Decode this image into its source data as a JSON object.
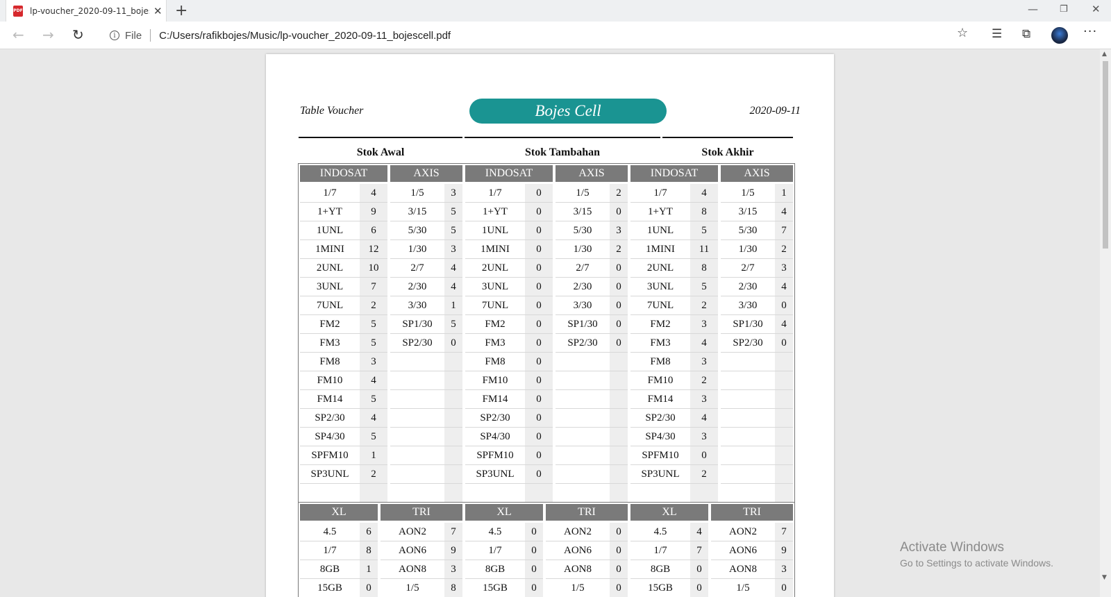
{
  "browser": {
    "tab_title": "lp-voucher_2020-09-11_bojescell.pdf",
    "tab_icon_text": "PDF",
    "new_tab": "+",
    "tab_close": "✕",
    "file_label": "File",
    "url": "C:/Users/rafikbojes/Music/lp-voucher_2020-09-11_bojescell.pdf",
    "icons": [
      "back-icon",
      "forward-icon",
      "refresh-icon",
      "info-icon",
      "star-icon",
      "favorites-icon",
      "collections-icon",
      "avatar",
      "more-icon"
    ]
  },
  "document": {
    "header_left": "Table Voucher",
    "header_center": "Bojes Cell",
    "header_right": "2020-09-11",
    "accent_color": "#1a9492",
    "sections": [
      "Stok Awal",
      "Stok Tambahan",
      "Stok Akhir"
    ],
    "table1": {
      "groups": [
        {
          "brand": "INDOSAT",
          "rows": [
            [
              "1/7",
              "4"
            ],
            [
              "1+YT",
              "9"
            ],
            [
              "1UNL",
              "6"
            ],
            [
              "1MINI",
              "12"
            ],
            [
              "2UNL",
              "10"
            ],
            [
              "3UNL",
              "7"
            ],
            [
              "7UNL",
              "2"
            ],
            [
              "FM2",
              "5"
            ],
            [
              "FM3",
              "5"
            ],
            [
              "FM8",
              "3"
            ],
            [
              "FM10",
              "4"
            ],
            [
              "FM14",
              "5"
            ],
            [
              "SP2/30",
              "4"
            ],
            [
              "SP4/30",
              "5"
            ],
            [
              "SPFM10",
              "1"
            ],
            [
              "SP3UNL",
              "2"
            ],
            [
              "",
              ""
            ]
          ]
        },
        {
          "brand": "AXIS",
          "rows": [
            [
              "1/5",
              "3"
            ],
            [
              "3/15",
              "5"
            ],
            [
              "5/30",
              "5"
            ],
            [
              "1/30",
              "3"
            ],
            [
              "2/7",
              "4"
            ],
            [
              "2/30",
              "4"
            ],
            [
              "3/30",
              "1"
            ],
            [
              "SP1/30",
              "5"
            ],
            [
              "SP2/30",
              "0"
            ],
            [
              "",
              ""
            ],
            [
              "",
              ""
            ],
            [
              "",
              ""
            ],
            [
              "",
              ""
            ],
            [
              "",
              ""
            ],
            [
              "",
              ""
            ],
            [
              "",
              ""
            ],
            [
              "",
              ""
            ]
          ]
        },
        {
          "brand": "INDOSAT",
          "rows": [
            [
              "1/7",
              "0"
            ],
            [
              "1+YT",
              "0"
            ],
            [
              "1UNL",
              "0"
            ],
            [
              "1MINI",
              "0"
            ],
            [
              "2UNL",
              "0"
            ],
            [
              "3UNL",
              "0"
            ],
            [
              "7UNL",
              "0"
            ],
            [
              "FM2",
              "0"
            ],
            [
              "FM3",
              "0"
            ],
            [
              "FM8",
              "0"
            ],
            [
              "FM10",
              "0"
            ],
            [
              "FM14",
              "0"
            ],
            [
              "SP2/30",
              "0"
            ],
            [
              "SP4/30",
              "0"
            ],
            [
              "SPFM10",
              "0"
            ],
            [
              "SP3UNL",
              "0"
            ],
            [
              "",
              ""
            ]
          ]
        },
        {
          "brand": "AXIS",
          "rows": [
            [
              "1/5",
              "2"
            ],
            [
              "3/15",
              "0"
            ],
            [
              "5/30",
              "3"
            ],
            [
              "1/30",
              "2"
            ],
            [
              "2/7",
              "0"
            ],
            [
              "2/30",
              "0"
            ],
            [
              "3/30",
              "0"
            ],
            [
              "SP1/30",
              "0"
            ],
            [
              "SP2/30",
              "0"
            ],
            [
              "",
              ""
            ],
            [
              "",
              ""
            ],
            [
              "",
              ""
            ],
            [
              "",
              ""
            ],
            [
              "",
              ""
            ],
            [
              "",
              ""
            ],
            [
              "",
              ""
            ],
            [
              "",
              ""
            ]
          ]
        },
        {
          "brand": "INDOSAT",
          "rows": [
            [
              "1/7",
              "4"
            ],
            [
              "1+YT",
              "8"
            ],
            [
              "1UNL",
              "5"
            ],
            [
              "1MINI",
              "11"
            ],
            [
              "2UNL",
              "8"
            ],
            [
              "3UNL",
              "5"
            ],
            [
              "7UNL",
              "2"
            ],
            [
              "FM2",
              "3"
            ],
            [
              "FM3",
              "4"
            ],
            [
              "FM8",
              "3"
            ],
            [
              "FM10",
              "2"
            ],
            [
              "FM14",
              "3"
            ],
            [
              "SP2/30",
              "4"
            ],
            [
              "SP4/30",
              "3"
            ],
            [
              "SPFM10",
              "0"
            ],
            [
              "SP3UNL",
              "2"
            ],
            [
              "",
              ""
            ]
          ]
        },
        {
          "brand": "AXIS",
          "rows": [
            [
              "1/5",
              "1"
            ],
            [
              "3/15",
              "4"
            ],
            [
              "5/30",
              "7"
            ],
            [
              "1/30",
              "2"
            ],
            [
              "2/7",
              "3"
            ],
            [
              "2/30",
              "4"
            ],
            [
              "3/30",
              "0"
            ],
            [
              "SP1/30",
              "4"
            ],
            [
              "SP2/30",
              "0"
            ],
            [
              "",
              ""
            ],
            [
              "",
              ""
            ],
            [
              "",
              ""
            ],
            [
              "",
              ""
            ],
            [
              "",
              ""
            ],
            [
              "",
              ""
            ],
            [
              "",
              ""
            ],
            [
              "",
              ""
            ]
          ]
        }
      ]
    },
    "table2": {
      "groups": [
        {
          "brand": "XL",
          "rows": [
            [
              "4.5",
              "6"
            ],
            [
              "1/7",
              "8"
            ],
            [
              "8GB",
              "1"
            ],
            [
              "15GB",
              "0"
            ]
          ]
        },
        {
          "brand": "TRI",
          "rows": [
            [
              "AON2",
              "7"
            ],
            [
              "AON6",
              "9"
            ],
            [
              "AON8",
              "3"
            ],
            [
              "1/5",
              "8"
            ]
          ]
        },
        {
          "brand": "XL",
          "rows": [
            [
              "4.5",
              "0"
            ],
            [
              "1/7",
              "0"
            ],
            [
              "8GB",
              "0"
            ],
            [
              "15GB",
              "0"
            ]
          ]
        },
        {
          "brand": "TRI",
          "rows": [
            [
              "AON2",
              "0"
            ],
            [
              "AON6",
              "0"
            ],
            [
              "AON8",
              "0"
            ],
            [
              "1/5",
              "0"
            ]
          ]
        },
        {
          "brand": "XL",
          "rows": [
            [
              "4.5",
              "4"
            ],
            [
              "1/7",
              "7"
            ],
            [
              "8GB",
              "0"
            ],
            [
              "15GB",
              "0"
            ]
          ]
        },
        {
          "brand": "TRI",
          "rows": [
            [
              "AON2",
              "7"
            ],
            [
              "AON6",
              "9"
            ],
            [
              "AON8",
              "3"
            ],
            [
              "1/5",
              "0"
            ]
          ]
        }
      ]
    }
  },
  "watermark": {
    "line1": "Activate Windows",
    "line2": "Go to Settings to activate Windows."
  }
}
